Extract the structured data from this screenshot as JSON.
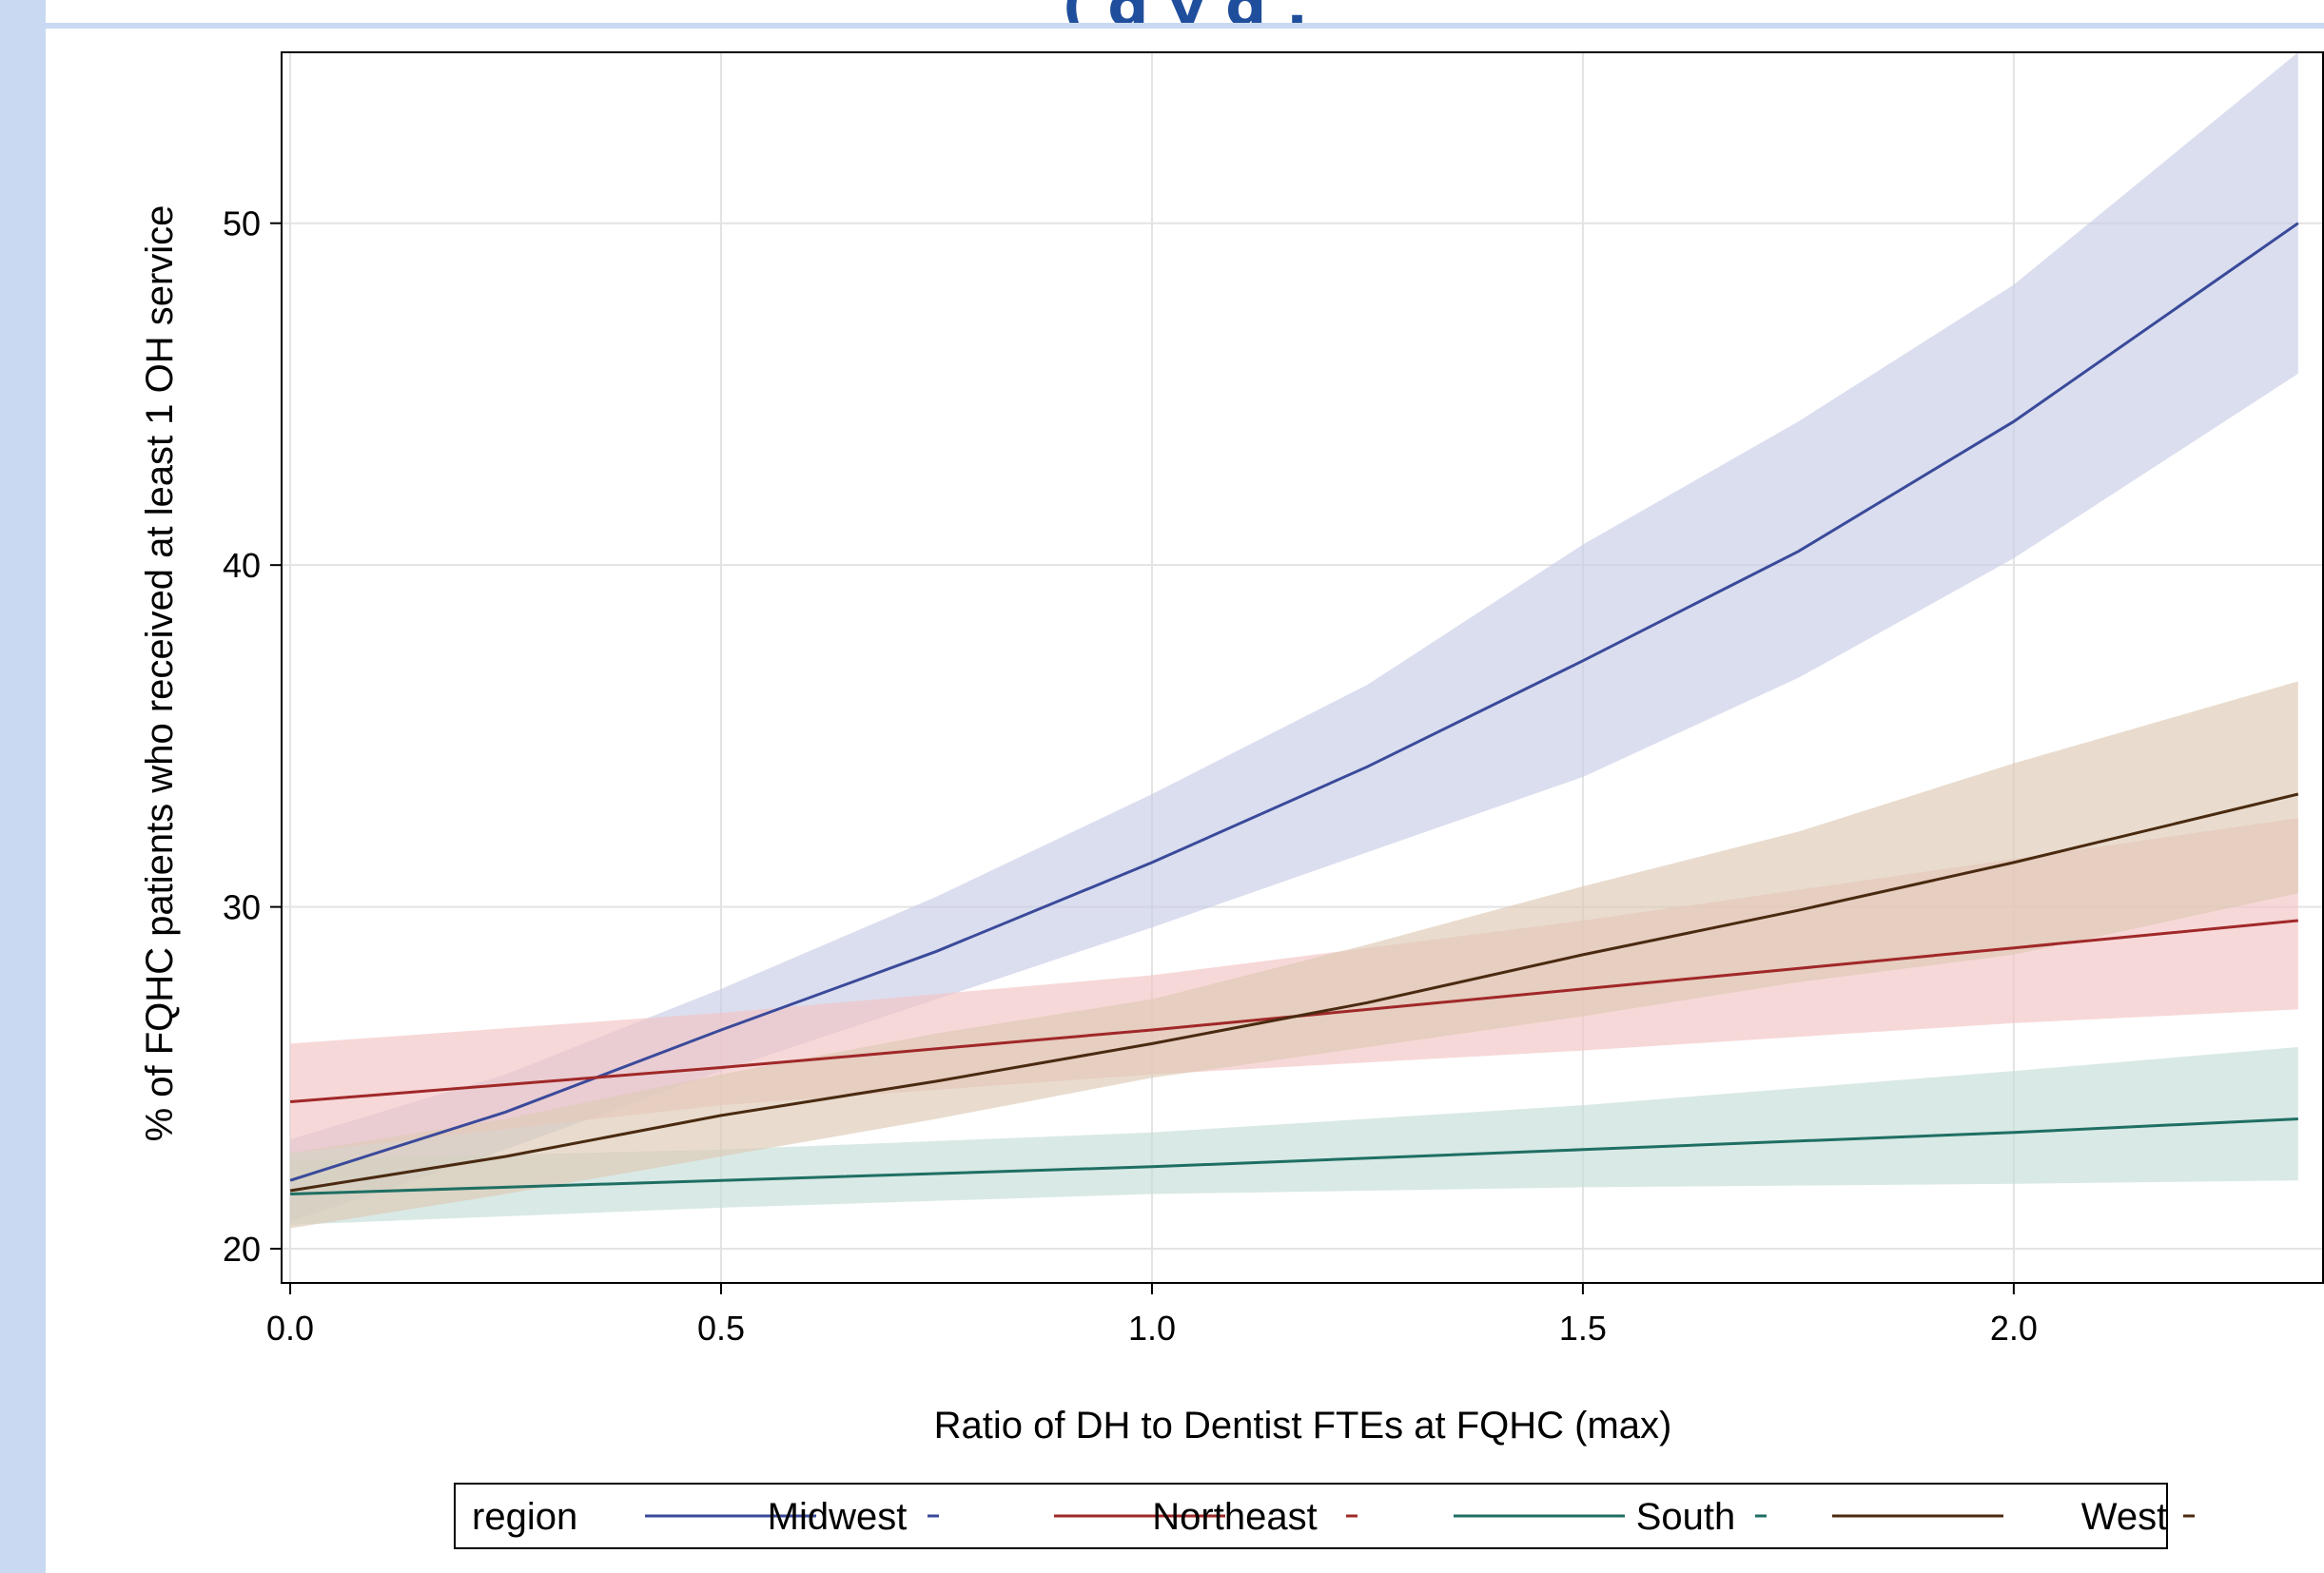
{
  "header": {
    "title_fragment": "(                  g                y  g       ,"
  },
  "chart_data": {
    "type": "line",
    "title": "",
    "xlabel": "Ratio of DH to Dentist FTEs at FQHC (max)",
    "ylabel": "% of FQHC patients who received at least 1 OH service",
    "xlim": [
      -0.01,
      2.36
    ],
    "ylim": [
      19.0,
      55.0
    ],
    "x_ticks": [
      "0.0",
      "0.5",
      "1.0",
      "1.5",
      "2.0"
    ],
    "y_ticks": [
      "20",
      "30",
      "40",
      "50"
    ],
    "grid": true,
    "legend_position": "bottom",
    "legend_title": "region",
    "series": [
      {
        "name": "Midwest",
        "color": "#3a4a9a",
        "band_color": "#c8cce6",
        "x": [
          0.0,
          0.25,
          0.5,
          0.75,
          1.0,
          1.25,
          1.5,
          1.75,
          2.0,
          2.33
        ],
        "y": [
          22.0,
          24.0,
          26.4,
          28.7,
          31.3,
          34.1,
          37.2,
          40.4,
          44.2,
          50.0
        ],
        "lower": [
          20.8,
          22.9,
          25.2,
          27.3,
          29.4,
          31.6,
          33.8,
          36.7,
          40.2,
          45.6
        ],
        "upper": [
          23.2,
          25.1,
          27.6,
          30.3,
          33.3,
          36.5,
          40.6,
          44.2,
          48.2,
          55.0
        ]
      },
      {
        "name": "Northeast",
        "color": "#a02828",
        "band_color": "#f2c3c3",
        "x": [
          0.0,
          0.5,
          1.0,
          1.5,
          2.0,
          2.33
        ],
        "y": [
          24.3,
          25.3,
          26.4,
          27.6,
          28.8,
          29.6
        ],
        "lower": [
          22.8,
          24.2,
          25.1,
          25.8,
          26.6,
          27.0
        ],
        "upper": [
          26.0,
          26.9,
          28.0,
          29.6,
          31.4,
          32.6
        ]
      },
      {
        "name": "South",
        "color": "#1f6f63",
        "band_color": "#c4ddd8",
        "x": [
          0.0,
          0.5,
          1.0,
          1.5,
          2.0,
          2.33
        ],
        "y": [
          21.6,
          22.0,
          22.4,
          22.9,
          23.4,
          23.8
        ],
        "lower": [
          20.7,
          21.2,
          21.6,
          21.8,
          21.9,
          22.0
        ],
        "upper": [
          22.6,
          22.9,
          23.4,
          24.2,
          25.2,
          25.9
        ]
      },
      {
        "name": "West",
        "color": "#4a2a10",
        "band_color": "#ddc9b3",
        "x": [
          0.0,
          0.25,
          0.5,
          0.75,
          1.0,
          1.25,
          1.5,
          1.75,
          2.0,
          2.33
        ],
        "y": [
          21.7,
          22.7,
          23.9,
          24.9,
          26.0,
          27.2,
          28.6,
          29.9,
          31.3,
          33.3
        ],
        "lower": [
          20.6,
          21.6,
          22.7,
          23.8,
          25.0,
          25.9,
          26.8,
          27.8,
          28.6,
          30.4
        ],
        "upper": [
          22.8,
          23.8,
          25.1,
          26.3,
          27.3,
          28.9,
          30.6,
          32.2,
          34.2,
          36.6
        ]
      }
    ]
  }
}
